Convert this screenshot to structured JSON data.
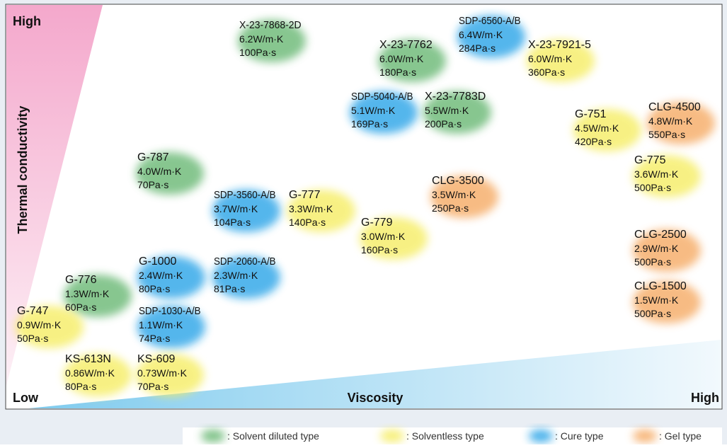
{
  "axes": {
    "y_high": "High",
    "y_label": "Thermal conductivity",
    "y_low": "Low",
    "x_label": "Viscosity",
    "x_high": "High"
  },
  "nodes": [
    {
      "name": "X-23-7868-2D",
      "conductivity": "6.2W/m·K",
      "viscosity": "100Pa·s",
      "type": "solvent"
    },
    {
      "name": "SDP-6560-A/B",
      "conductivity": "6.4W/m·K",
      "viscosity": "284Pa·s",
      "type": "cure"
    },
    {
      "name": "X-23-7762",
      "conductivity": "6.0W/m·K",
      "viscosity": "180Pa·s",
      "type": "solvent"
    },
    {
      "name": "X-23-7921-5",
      "conductivity": "6.0W/m·K",
      "viscosity": "360Pa·s",
      "type": "solventless"
    },
    {
      "name": "SDP-5040-A/B",
      "conductivity": "5.1W/m·K",
      "viscosity": "169Pa·s",
      "type": "cure"
    },
    {
      "name": "X-23-7783D",
      "conductivity": "5.5W/m·K",
      "viscosity": "200Pa·s",
      "type": "solvent"
    },
    {
      "name": "G-751",
      "conductivity": "4.5W/m·K",
      "viscosity": "420Pa·s",
      "type": "solventless"
    },
    {
      "name": "CLG-4500",
      "conductivity": "4.8W/m·K",
      "viscosity": "550Pa·s",
      "type": "gel"
    },
    {
      "name": "G-787",
      "conductivity": "4.0W/m·K",
      "viscosity": "70Pa·s",
      "type": "solvent"
    },
    {
      "name": "G-775",
      "conductivity": "3.6W/m·K",
      "viscosity": "500Pa·s",
      "type": "solventless"
    },
    {
      "name": "SDP-3560-A/B",
      "conductivity": "3.7W/m·K",
      "viscosity": "104Pa·s",
      "type": "cure"
    },
    {
      "name": "G-777",
      "conductivity": "3.3W/m·K",
      "viscosity": "140Pa·s",
      "type": "solventless"
    },
    {
      "name": "CLG-3500",
      "conductivity": "3.5W/m·K",
      "viscosity": "250Pa·s",
      "type": "gel"
    },
    {
      "name": "G-779",
      "conductivity": "3.0W/m·K",
      "viscosity": "160Pa·s",
      "type": "solventless"
    },
    {
      "name": "CLG-2500",
      "conductivity": "2.9W/m·K",
      "viscosity": "500Pa·s",
      "type": "gel"
    },
    {
      "name": "G-1000",
      "conductivity": "2.4W/m·K",
      "viscosity": "80Pa·s",
      "type": "cure"
    },
    {
      "name": "SDP-2060-A/B",
      "conductivity": "2.3W/m·K",
      "viscosity": "81Pa·s",
      "type": "cure"
    },
    {
      "name": "G-776",
      "conductivity": "1.3W/m·K",
      "viscosity": "60Pa·s",
      "type": "solvent"
    },
    {
      "name": "CLG-1500",
      "conductivity": "1.5W/m·K",
      "viscosity": "500Pa·s",
      "type": "gel"
    },
    {
      "name": "G-747",
      "conductivity": "0.9W/m·K",
      "viscosity": "50Pa·s",
      "type": "solventless"
    },
    {
      "name": "SDP-1030-A/B",
      "conductivity": "1.1W/m·K",
      "viscosity": "74Pa·s",
      "type": "cure"
    },
    {
      "name": "KS-613N",
      "conductivity": "0.86W/m·K",
      "viscosity": "80Pa·s",
      "type": "solventless"
    },
    {
      "name": "KS-609",
      "conductivity": "0.73W/m·K",
      "viscosity": "70Pa·s",
      "type": "solventless"
    }
  ],
  "legend": [
    {
      "key": "solvent",
      "color": "#5fb36a",
      "label": ": Solvent diluted type"
    },
    {
      "key": "solventless",
      "color": "#f5ec5a",
      "label": ": Solventless type"
    },
    {
      "key": "cure",
      "color": "#1e9ee6",
      "label": ": Cure type"
    },
    {
      "key": "gel",
      "color": "#f5a55a",
      "label": ": Gel type"
    }
  ]
}
